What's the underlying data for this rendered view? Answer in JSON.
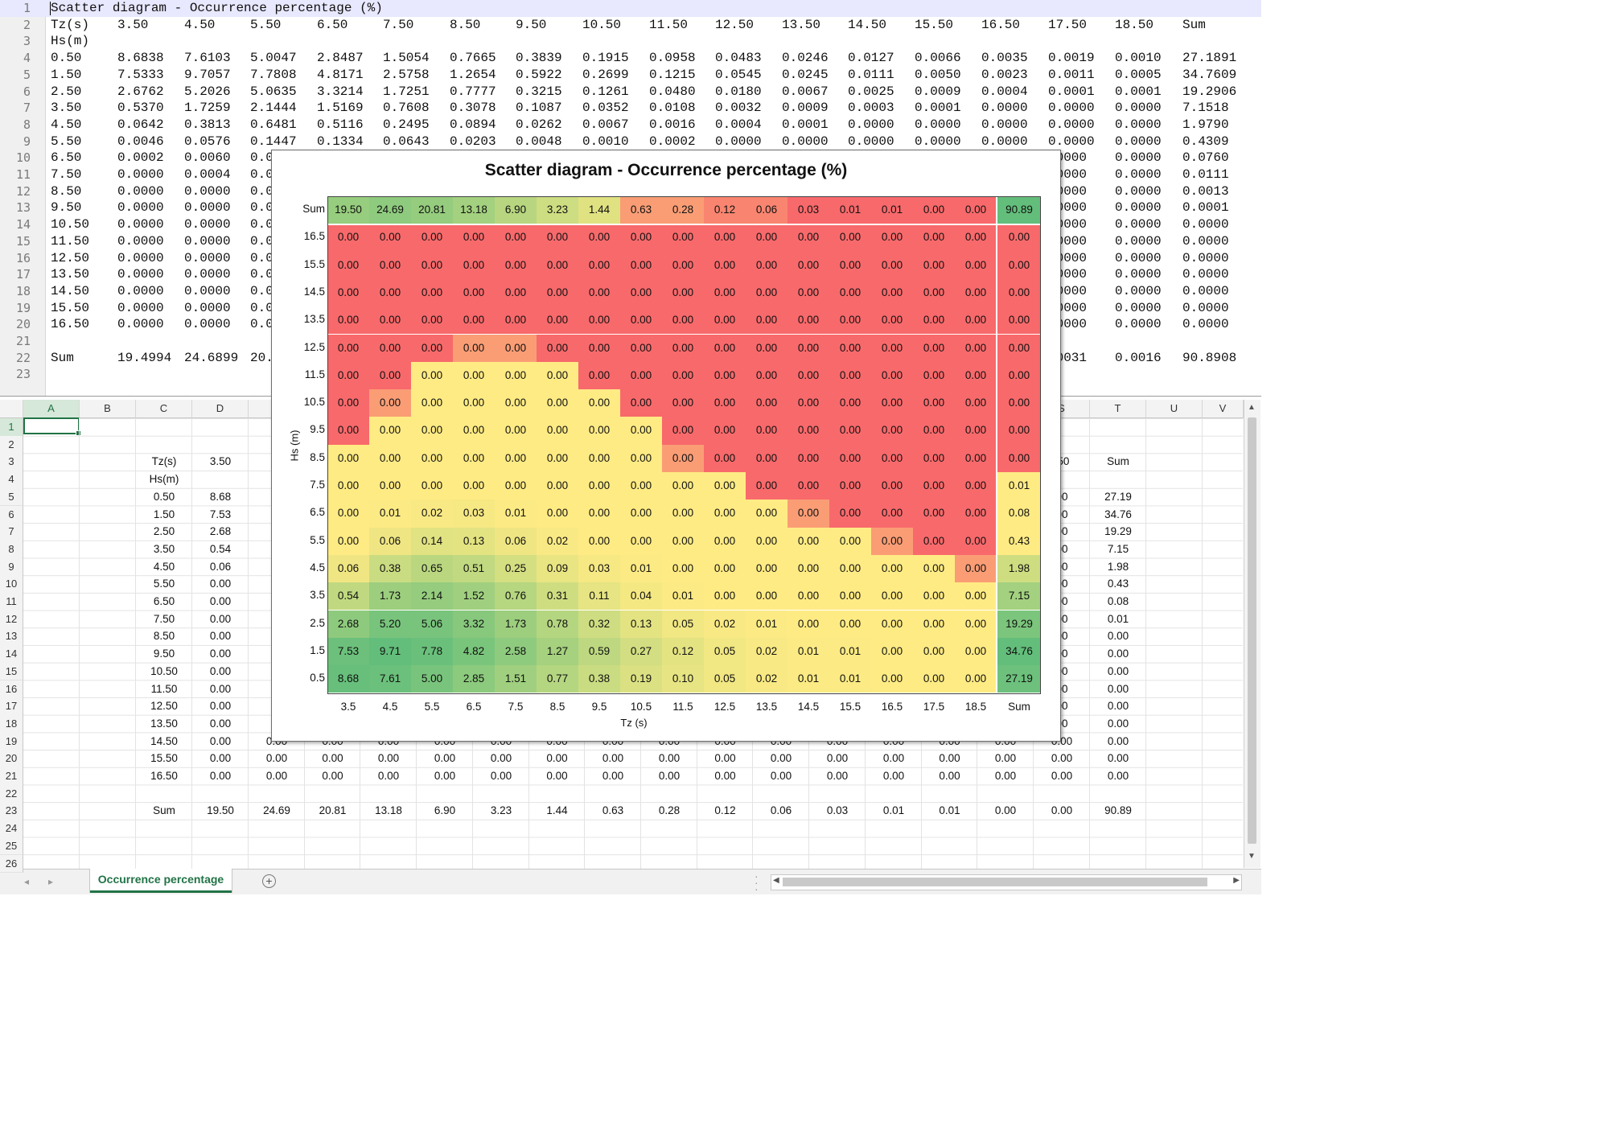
{
  "editor": {
    "lines": [
      [
        "Scatter diagram - Occurrence percentage (%)"
      ],
      [
        "Tz(s)",
        "3.50",
        "4.50",
        "5.50",
        "6.50",
        "7.50",
        "8.50",
        "9.50",
        "10.50",
        "11.50",
        "12.50",
        "13.50",
        "14.50",
        "15.50",
        "16.50",
        "17.50",
        "18.50",
        "Sum"
      ],
      [
        "Hs(m)"
      ],
      [
        "0.50",
        "8.6838",
        "7.6103",
        "5.0047",
        "2.8487",
        "1.5054",
        "0.7665",
        "0.3839",
        "0.1915",
        "0.0958",
        "0.0483",
        "0.0246",
        "0.0127",
        "0.0066",
        "0.0035",
        "0.0019",
        "0.0010",
        "27.1891"
      ],
      [
        "1.50",
        "7.5333",
        "9.7057",
        "7.7808",
        "4.8171",
        "2.5758",
        "1.2654",
        "0.5922",
        "0.2699",
        "0.1215",
        "0.0545",
        "0.0245",
        "0.0111",
        "0.0050",
        "0.0023",
        "0.0011",
        "0.0005",
        "34.7609"
      ],
      [
        "2.50",
        "2.6762",
        "5.2026",
        "5.0635",
        "3.3214",
        "1.7251",
        "0.7777",
        "0.3215",
        "0.1261",
        "0.0480",
        "0.0180",
        "0.0067",
        "0.0025",
        "0.0009",
        "0.0004",
        "0.0001",
        "0.0001",
        "19.2906"
      ],
      [
        "3.50",
        "0.5370",
        "1.7259",
        "2.1444",
        "1.5169",
        "0.7608",
        "0.3078",
        "0.1087",
        "0.0352",
        "0.0108",
        "0.0032",
        "0.0009",
        "0.0003",
        "0.0001",
        "0.0000",
        "0.0000",
        "0.0000",
        "7.1518"
      ],
      [
        "4.50",
        "0.0642",
        "0.3813",
        "0.6481",
        "0.5116",
        "0.2495",
        "0.0894",
        "0.0262",
        "0.0067",
        "0.0016",
        "0.0004",
        "0.0001",
        "0.0000",
        "0.0000",
        "0.0000",
        "0.0000",
        "0.0000",
        "1.9790"
      ],
      [
        "5.50",
        "0.0046",
        "0.0576",
        "0.1447",
        "0.1334",
        "0.0643",
        "0.0203",
        "0.0048",
        "0.0010",
        "0.0002",
        "0.0000",
        "0.0000",
        "0.0000",
        "0.0000",
        "0.0000",
        "0.0000",
        "0.0000",
        "0.4309"
      ],
      [
        "6.50",
        "0.0002",
        "0.0060",
        "0.0",
        "",
        "",
        "",
        "",
        "",
        "",
        "",
        "",
        "",
        "",
        "",
        ".0000",
        "0.0000",
        "0.0760"
      ],
      [
        "7.50",
        "0.0000",
        "0.0004",
        "0.0",
        "",
        "",
        "",
        "",
        "",
        "",
        "",
        "",
        "",
        "",
        "",
        ".0000",
        "0.0000",
        "0.0111"
      ],
      [
        "8.50",
        "0.0000",
        "0.0000",
        "0.0",
        "",
        "",
        "",
        "",
        "",
        "",
        "",
        "",
        "",
        "",
        "",
        ".0000",
        "0.0000",
        "0.0013"
      ],
      [
        "9.50",
        "0.0000",
        "0.0000",
        "0.0",
        "",
        "",
        "",
        "",
        "",
        "",
        "",
        "",
        "",
        "",
        "",
        ".0000",
        "0.0000",
        "0.0001"
      ],
      [
        "10.50",
        "0.0000",
        "0.0000",
        "0.0",
        "",
        "",
        "",
        "",
        "",
        "",
        "",
        "",
        "",
        "",
        "",
        ".0000",
        "0.0000",
        "0.0000"
      ],
      [
        "11.50",
        "0.0000",
        "0.0000",
        "0.0",
        "",
        "",
        "",
        "",
        "",
        "",
        "",
        "",
        "",
        "",
        "",
        ".0000",
        "0.0000",
        "0.0000"
      ],
      [
        "12.50",
        "0.0000",
        "0.0000",
        "0.0",
        "",
        "",
        "",
        "",
        "",
        "",
        "",
        "",
        "",
        "",
        "",
        ".0000",
        "0.0000",
        "0.0000"
      ],
      [
        "13.50",
        "0.0000",
        "0.0000",
        "0.0",
        "",
        "",
        "",
        "",
        "",
        "",
        "",
        "",
        "",
        "",
        "",
        ".0000",
        "0.0000",
        "0.0000"
      ],
      [
        "14.50",
        "0.0000",
        "0.0000",
        "0.0",
        "",
        "",
        "",
        "",
        "",
        "",
        "",
        "",
        "",
        "",
        "",
        ".0000",
        "0.0000",
        "0.0000"
      ],
      [
        "15.50",
        "0.0000",
        "0.0000",
        "0.0",
        "",
        "",
        "",
        "",
        "",
        "",
        "",
        "",
        "",
        "",
        "",
        ".0000",
        "0.0000",
        "0.0000"
      ],
      [
        "16.50",
        "0.0000",
        "0.0000",
        "0.0",
        "",
        "",
        "",
        "",
        "",
        "",
        "",
        "",
        "",
        "",
        "",
        ".0000",
        "0.0000",
        "0.0000"
      ],
      [],
      [
        "Sum",
        "19.4994",
        "24.6899",
        "20.",
        "",
        "",
        "",
        "",
        "",
        "",
        "",
        "",
        "",
        "",
        "",
        ".0031",
        "0.0016",
        "90.8908"
      ],
      []
    ]
  },
  "sheet": {
    "columns": [
      "A",
      "B",
      "C",
      "D",
      "",
      "",
      "",
      "",
      "",
      "",
      "",
      "",
      "",
      "",
      "",
      "",
      "",
      "",
      "S",
      "T",
      "U",
      "V"
    ],
    "rows": [
      [],
      [],
      [
        "Tz(s)",
        "3.50",
        "4",
        "",
        "",
        "",
        "",
        "",
        "",
        "",
        "",
        "",
        "",
        "",
        "",
        "",
        ".50",
        "Sum"
      ],
      [
        "Hs(m)"
      ],
      [
        "0.50",
        "8.68",
        "7",
        "",
        "",
        "",
        "",
        "",
        "",
        "",
        "",
        "",
        "",
        "",
        "",
        "",
        "00",
        "27.19"
      ],
      [
        "1.50",
        "7.53",
        "9",
        "",
        "",
        "",
        "",
        "",
        "",
        "",
        "",
        "",
        "",
        "",
        "",
        "",
        "00",
        "34.76"
      ],
      [
        "2.50",
        "2.68",
        "5",
        "",
        "",
        "",
        "",
        "",
        "",
        "",
        "",
        "",
        "",
        "",
        "",
        "",
        "00",
        "19.29"
      ],
      [
        "3.50",
        "0.54",
        "1",
        "",
        "",
        "",
        "",
        "",
        "",
        "",
        "",
        "",
        "",
        "",
        "",
        "",
        "00",
        "7.15"
      ],
      [
        "4.50",
        "0.06",
        "0",
        "",
        "",
        "",
        "",
        "",
        "",
        "",
        "",
        "",
        "",
        "",
        "",
        "",
        "00",
        "1.98"
      ],
      [
        "5.50",
        "0.00",
        "0",
        "",
        "",
        "",
        "",
        "",
        "",
        "",
        "",
        "",
        "",
        "",
        "",
        "",
        "00",
        "0.43"
      ],
      [
        "6.50",
        "0.00",
        "0",
        "",
        "",
        "",
        "",
        "",
        "",
        "",
        "",
        "",
        "",
        "",
        "",
        "",
        "00",
        "0.08"
      ],
      [
        "7.50",
        "0.00",
        "0",
        "",
        "",
        "",
        "",
        "",
        "",
        "",
        "",
        "",
        "",
        "",
        "",
        "",
        "00",
        "0.01"
      ],
      [
        "8.50",
        "0.00",
        "0",
        "",
        "",
        "",
        "",
        "",
        "",
        "",
        "",
        "",
        "",
        "",
        "",
        "",
        "00",
        "0.00"
      ],
      [
        "9.50",
        "0.00",
        "0",
        "",
        "",
        "",
        "",
        "",
        "",
        "",
        "",
        "",
        "",
        "",
        "",
        "",
        "00",
        "0.00"
      ],
      [
        "10.50",
        "0.00",
        "0",
        "",
        "",
        "",
        "",
        "",
        "",
        "",
        "",
        "",
        "",
        "",
        "",
        "",
        "00",
        "0.00"
      ],
      [
        "11.50",
        "0.00",
        "0",
        "",
        "",
        "",
        "",
        "",
        "",
        "",
        "",
        "",
        "",
        "",
        "",
        "",
        "00",
        "0.00"
      ],
      [
        "12.50",
        "0.00",
        "0",
        "",
        "",
        "",
        "",
        "",
        "",
        "",
        "",
        "",
        "",
        "",
        "",
        "",
        "00",
        "0.00"
      ],
      [
        "13.50",
        "0.00",
        "0",
        "",
        "",
        "",
        "",
        "",
        "",
        "",
        "",
        "",
        "",
        "",
        "",
        "",
        "00",
        "0.00"
      ],
      [
        "14.50",
        "0.00",
        "0.00",
        "0.00",
        "0.00",
        "0.00",
        "0.00",
        "0.00",
        "0.00",
        "0.00",
        "0.00",
        "0.00",
        "0.00",
        "0.00",
        "0.00",
        "0.00",
        "0.00",
        "0.00"
      ],
      [
        "15.50",
        "0.00",
        "0.00",
        "0.00",
        "0.00",
        "0.00",
        "0.00",
        "0.00",
        "0.00",
        "0.00",
        "0.00",
        "0.00",
        "0.00",
        "0.00",
        "0.00",
        "0.00",
        "0.00",
        "0.00"
      ],
      [
        "16.50",
        "0.00",
        "0.00",
        "0.00",
        "0.00",
        "0.00",
        "0.00",
        "0.00",
        "0.00",
        "0.00",
        "0.00",
        "0.00",
        "0.00",
        "0.00",
        "0.00",
        "0.00",
        "0.00",
        "0.00"
      ],
      [],
      [
        "Sum",
        "19.50",
        "24.69",
        "20.81",
        "13.18",
        "6.90",
        "3.23",
        "1.44",
        "0.63",
        "0.28",
        "0.12",
        "0.06",
        "0.03",
        "0.01",
        "0.01",
        "0.00",
        "0.00",
        "90.89"
      ],
      [],
      [],
      []
    ],
    "selected_cell": "A1",
    "sheet_tab": "Occurrence percentage",
    "add_sheet": "+"
  },
  "chart_data": {
    "type": "heatmap",
    "title": "Scatter diagram - Occurrence percentage (%)",
    "xlabel": "Tz (s)",
    "ylabel": "Hs (m)",
    "x": [
      "3.5",
      "4.5",
      "5.5",
      "6.5",
      "7.5",
      "8.5",
      "9.5",
      "10.5",
      "11.5",
      "12.5",
      "13.5",
      "14.5",
      "15.5",
      "16.5",
      "17.5",
      "18.5"
    ],
    "y": [
      "16.5",
      "15.5",
      "14.5",
      "13.5",
      "12.5",
      "11.5",
      "10.5",
      "9.5",
      "8.5",
      "7.5",
      "6.5",
      "5.5",
      "4.5",
      "3.5",
      "2.5",
      "1.5",
      "0.5"
    ],
    "sum_label": "Sum",
    "col_sums": [
      19.5,
      24.69,
      20.81,
      13.18,
      6.9,
      3.23,
      1.44,
      0.63,
      0.28,
      0.12,
      0.06,
      0.03,
      0.01,
      0.01,
      0.0,
      0.0
    ],
    "total": 90.89,
    "row_sums": [
      0.0,
      0.0,
      0.0,
      0.0,
      0.0,
      0.0,
      0.0,
      0.0,
      0.0,
      0.01,
      0.08,
      0.43,
      1.98,
      7.15,
      19.29,
      34.76,
      27.19
    ],
    "values": [
      [
        0,
        0,
        0,
        0,
        0,
        0,
        0,
        0,
        0,
        0,
        0,
        0,
        0,
        0,
        0,
        0
      ],
      [
        0,
        0,
        0,
        0,
        0,
        0,
        0,
        0,
        0,
        0,
        0,
        0,
        0,
        0,
        0,
        0
      ],
      [
        0,
        0,
        0,
        0,
        0,
        0,
        0,
        0,
        0,
        0,
        0,
        0,
        0,
        0,
        0,
        0
      ],
      [
        0,
        0,
        0,
        0,
        0,
        0,
        0,
        0,
        0,
        0,
        0,
        0,
        0,
        0,
        0,
        0
      ],
      [
        0,
        0,
        0,
        0,
        0,
        0,
        0,
        0,
        0,
        0,
        0,
        0,
        0,
        0,
        0,
        0
      ],
      [
        0,
        0,
        0,
        0,
        0,
        0,
        0,
        0,
        0,
        0,
        0,
        0,
        0,
        0,
        0,
        0
      ],
      [
        0,
        0,
        0,
        0,
        0,
        0,
        0,
        0,
        0,
        0,
        0,
        0,
        0,
        0,
        0,
        0
      ],
      [
        0,
        0,
        0,
        0,
        0,
        0,
        0,
        0,
        0,
        0,
        0,
        0,
        0,
        0,
        0,
        0
      ],
      [
        0,
        0,
        0,
        0,
        0,
        0,
        0,
        0,
        0,
        0,
        0,
        0,
        0,
        0,
        0,
        0
      ],
      [
        0,
        0,
        0,
        0,
        0,
        0,
        0,
        0,
        0,
        0,
        0,
        0,
        0,
        0,
        0,
        0
      ],
      [
        0,
        0.01,
        0.02,
        0.03,
        0.01,
        0,
        0,
        0,
        0,
        0,
        0,
        0,
        0,
        0,
        0,
        0
      ],
      [
        0,
        0.06,
        0.14,
        0.13,
        0.06,
        0.02,
        0,
        0,
        0,
        0,
        0,
        0,
        0,
        0,
        0,
        0
      ],
      [
        0.06,
        0.38,
        0.65,
        0.51,
        0.25,
        0.09,
        0.03,
        0.01,
        0,
        0,
        0,
        0,
        0,
        0,
        0,
        0
      ],
      [
        0.54,
        1.73,
        2.14,
        1.52,
        0.76,
        0.31,
        0.11,
        0.04,
        0.01,
        0,
        0,
        0,
        0,
        0,
        0,
        0
      ],
      [
        2.68,
        5.2,
        5.06,
        3.32,
        1.73,
        0.78,
        0.32,
        0.13,
        0.05,
        0.02,
        0.01,
        0,
        0,
        0,
        0,
        0
      ],
      [
        7.53,
        9.71,
        7.78,
        4.82,
        2.58,
        1.27,
        0.59,
        0.27,
        0.12,
        0.05,
        0.02,
        0.01,
        0.01,
        0,
        0,
        0
      ],
      [
        8.68,
        7.61,
        5.0,
        2.85,
        1.51,
        0.77,
        0.38,
        0.19,
        0.1,
        0.05,
        0.02,
        0.01,
        0.01,
        0,
        0,
        0
      ]
    ],
    "value_format": "0.00",
    "colors": {
      "zero": "#f8696b",
      "near_zero": "#fa9d75",
      "low": "#ffeb84",
      "high": "#63be7b"
    }
  }
}
